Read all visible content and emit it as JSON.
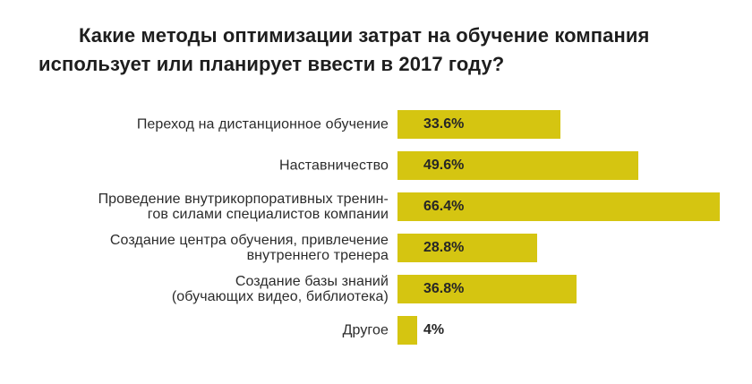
{
  "title": "Какие методы оптимизации затрат на обучение компания использует или планирует ввести в 2017 году?",
  "chart_data": {
    "type": "bar",
    "orientation": "horizontal",
    "title": "Какие методы оптимизации затрат на обучение компания использует или планирует ввести в 2017 году?",
    "categories": [
      "Переход на дистанционное обучение",
      "Наставничество",
      "Проведение внутрикорпоративных тренингов силами специалистов компании",
      "Создание центра обучения, привлечение внутреннего тренера",
      "Создание базы знаний (обучающих видео, библиотека)",
      "Другое"
    ],
    "category_display_lines": [
      [
        "Переход на дистанционное обучение"
      ],
      [
        "Наставничество"
      ],
      [
        "Проведение внутрикорпоративных тренин-",
        "гов силами специалистов компании"
      ],
      [
        "Создание центра обучения, привлечение",
        "внутреннего тренера"
      ],
      [
        "Создание базы знаний",
        "(обучающих видео, библиотека)"
      ],
      [
        "Другое"
      ]
    ],
    "values": [
      33.6,
      49.6,
      66.4,
      28.8,
      36.8,
      4
    ],
    "value_labels": [
      "33.6%",
      "49.6%",
      "66.4%",
      "28.8%",
      "36.8%",
      "4%"
    ],
    "xlabel": "",
    "ylabel": "",
    "axis_shown": false,
    "grid": false,
    "legend": false,
    "value_label_position": "inside-left",
    "bar_color": "#d5c511",
    "title_color": "#1e1e1e",
    "label_color": "#2b2b2b",
    "value_color": "#262626"
  }
}
